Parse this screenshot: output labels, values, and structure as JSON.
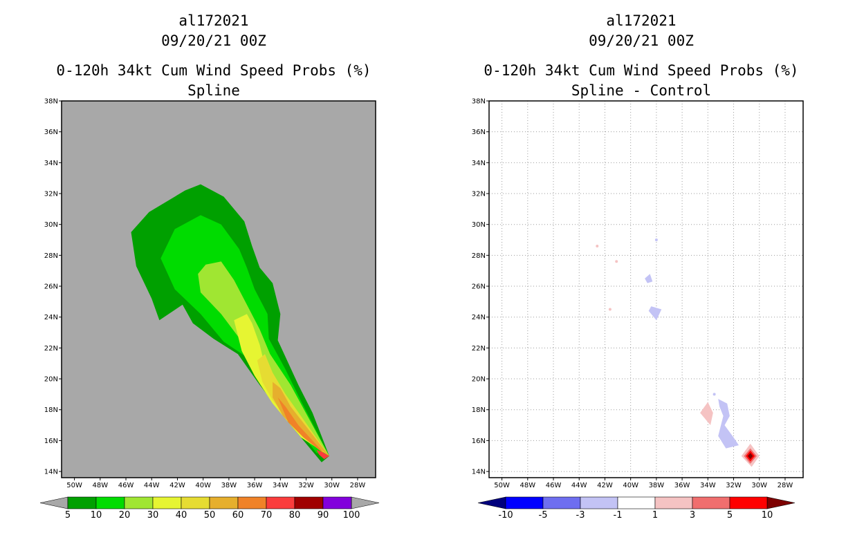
{
  "panels": [
    {
      "title_lines": [
        "al172021",
        "09/20/21 00Z",
        "0-120h 34kt Cum Wind Speed Probs (%)",
        "Spline"
      ]
    },
    {
      "title_lines": [
        "al172021",
        "09/20/21 00Z",
        "0-120h 34kt Cum Wind Speed Probs (%)",
        "Spline - Control"
      ]
    }
  ],
  "chart_data": [
    {
      "type": "heatmap",
      "title": "0-120h 34kt Cum Wind Speed Probs (%) Spline",
      "storm": "al172021",
      "time": "09/20/21 00Z",
      "x_ticks": [
        "50W",
        "48W",
        "46W",
        "44W",
        "42W",
        "40W",
        "38W",
        "36W",
        "34W",
        "32W",
        "30W",
        "28W"
      ],
      "y_ticks": [
        "14N",
        "16N",
        "18N",
        "20N",
        "22N",
        "24N",
        "26N",
        "28N",
        "30N",
        "32N",
        "34N",
        "36N",
        "38N"
      ],
      "xlim_deg_w": [
        51,
        26.6
      ],
      "ylim_deg_n": [
        13.6,
        38
      ],
      "grid": false,
      "background_color": "#a8a8a8",
      "colorbar": {
        "labels": [
          "5",
          "10",
          "20",
          "30",
          "40",
          "50",
          "60",
          "70",
          "80",
          "90",
          "100"
        ],
        "colors": [
          "#00a000",
          "#00dc00",
          "#a0e632",
          "#e6f532",
          "#e6dc32",
          "#e6af2d",
          "#f08228",
          "#fa3c3c",
          "#a00000",
          "#8200dc"
        ],
        "arrow_colors": [
          "#a8a8a8",
          "#a8a8a8"
        ]
      },
      "contours": [
        {
          "level": 5,
          "color": "#00a000",
          "polygon": [
            [
              -45.6,
              29.5
            ],
            [
              -44.2,
              30.8
            ],
            [
              -41.4,
              32.2
            ],
            [
              -40.2,
              32.6
            ],
            [
              -38.4,
              31.8
            ],
            [
              -36.8,
              30.2
            ],
            [
              -36.2,
              28.6
            ],
            [
              -35.6,
              27.2
            ],
            [
              -34.6,
              26.2
            ],
            [
              -34,
              24.2
            ],
            [
              -34.2,
              22.5
            ],
            [
              -32.6,
              19.6
            ],
            [
              -31.5,
              17.8
            ],
            [
              -30.2,
              15
            ],
            [
              -30.8,
              14.6
            ],
            [
              -33.4,
              17.2
            ],
            [
              -35.6,
              19.6
            ],
            [
              -37.3,
              21.6
            ],
            [
              -39.2,
              22.6
            ],
            [
              -40.8,
              23.6
            ],
            [
              -41.6,
              24.8
            ],
            [
              -43.4,
              23.8
            ],
            [
              -44,
              25.2
            ],
            [
              -45.2,
              27.3
            ]
          ]
        },
        {
          "level": 10,
          "color": "#00dc00",
          "polygon": [
            [
              -43.3,
              27.8
            ],
            [
              -42.2,
              29.7
            ],
            [
              -40.2,
              30.6
            ],
            [
              -38.6,
              30
            ],
            [
              -37.2,
              28.4
            ],
            [
              -36.6,
              27.2
            ],
            [
              -36,
              25.8
            ],
            [
              -35,
              24.2
            ],
            [
              -34.9,
              22.6
            ],
            [
              -33.6,
              20.6
            ],
            [
              -32.3,
              18.4
            ],
            [
              -30.2,
              15
            ],
            [
              -31.2,
              15.2
            ],
            [
              -33.4,
              17.6
            ],
            [
              -35.2,
              19.6
            ],
            [
              -36.6,
              21.4
            ],
            [
              -38.4,
              22.4
            ],
            [
              -40.2,
              24.2
            ],
            [
              -42.2,
              25.8
            ]
          ]
        },
        {
          "level": 20,
          "color": "#a0e632",
          "polygon": [
            [
              -40.4,
              26.8
            ],
            [
              -39.8,
              27.4
            ],
            [
              -38.6,
              27.6
            ],
            [
              -37.6,
              26.4
            ],
            [
              -36.6,
              24.8
            ],
            [
              -35.6,
              23.2
            ],
            [
              -34.8,
              21.6
            ],
            [
              -33.2,
              19.6
            ],
            [
              -30.2,
              15
            ],
            [
              -31.8,
              16
            ],
            [
              -33.8,
              17.8
            ],
            [
              -35.6,
              20
            ],
            [
              -36.8,
              22.2
            ],
            [
              -38.6,
              24.2
            ],
            [
              -40.2,
              25.6
            ]
          ]
        },
        {
          "level": 30,
          "color": "#e6f532",
          "polygon": [
            [
              -37.6,
              23.8
            ],
            [
              -36.6,
              24.2
            ],
            [
              -36.2,
              23.6
            ],
            [
              -35.6,
              22.2
            ],
            [
              -35.2,
              20.8
            ],
            [
              -34.2,
              19.4
            ],
            [
              -30.2,
              15
            ],
            [
              -32.4,
              16.2
            ],
            [
              -34.6,
              18.4
            ],
            [
              -36,
              20.2
            ],
            [
              -37,
              21.8
            ]
          ]
        },
        {
          "level": 40,
          "color": "#e6dc32",
          "polygon": [
            [
              -35.8,
              21.2
            ],
            [
              -35.2,
              21.6
            ],
            [
              -34.6,
              20.4
            ],
            [
              -33.6,
              19
            ],
            [
              -30.2,
              15
            ],
            [
              -32.6,
              16.6
            ],
            [
              -34.6,
              18.6
            ],
            [
              -35.4,
              19.8
            ]
          ]
        },
        {
          "level": 50,
          "color": "#e6af2d",
          "polygon": [
            [
              -34.6,
              19.8
            ],
            [
              -34,
              19.4
            ],
            [
              -33.2,
              18.2
            ],
            [
              -30.2,
              15
            ],
            [
              -32.4,
              16.4
            ],
            [
              -33.8,
              17.6
            ],
            [
              -34.6,
              18.8
            ]
          ]
        },
        {
          "level": 60,
          "color": "#f08228",
          "polygon": [
            [
              -34.2,
              18.8
            ],
            [
              -33.6,
              18.2
            ],
            [
              -32.6,
              17
            ],
            [
              -30.4,
              15
            ],
            [
              -32.2,
              16.2
            ],
            [
              -33.4,
              17.2
            ]
          ]
        },
        {
          "level": 70,
          "color": "#fa3c3c",
          "polygon": [
            [
              -31.2,
              15.4
            ],
            [
              -30.6,
              15.2
            ],
            [
              -30.2,
              15
            ],
            [
              -30.6,
              14.8
            ],
            [
              -31,
              15.1
            ]
          ]
        }
      ]
    },
    {
      "type": "heatmap",
      "title": "0-120h 34kt Cum Wind Speed Probs (%) Spline - Control",
      "storm": "al172021",
      "time": "09/20/21 00Z",
      "x_ticks": [
        "50W",
        "48W",
        "46W",
        "44W",
        "42W",
        "40W",
        "38W",
        "36W",
        "34W",
        "32W",
        "30W",
        "28W"
      ],
      "y_ticks": [
        "14N",
        "16N",
        "18N",
        "20N",
        "22N",
        "24N",
        "26N",
        "28N",
        "30N",
        "32N",
        "34N",
        "36N",
        "38N"
      ],
      "xlim_deg_w": [
        51,
        26.6
      ],
      "ylim_deg_n": [
        13.6,
        38
      ],
      "grid": true,
      "background_color": "#ffffff",
      "colorbar": {
        "labels": [
          "-10",
          "-5",
          "-3",
          "-1",
          "1",
          "3",
          "5",
          "10"
        ],
        "colors": [
          "#0000ff",
          "#6e6ef0",
          "#c3c3f5",
          "#ffffff",
          "#f5c3c3",
          "#f06e6e",
          "#ff0000"
        ],
        "arrow_colors": [
          "#00007d",
          "#7d0000"
        ]
      },
      "contours": [
        {
          "level": -1,
          "color": "#c3c3f5",
          "polygon": [
            [
              -38,
              29
            ]
          ]
        },
        {
          "level": -1,
          "color": "#c3c3f5",
          "polygon": [
            [
              -38.5,
              26.8
            ],
            [
              -38.3,
              26.3
            ],
            [
              -38.7,
              26.2
            ],
            [
              -38.9,
              26.5
            ]
          ]
        },
        {
          "level": -1,
          "color": "#c3c3f5",
          "polygon": [
            [
              -38.4,
              24.7
            ],
            [
              -37.6,
              24.5
            ],
            [
              -38,
              23.8
            ],
            [
              -38.6,
              24.4
            ]
          ]
        },
        {
          "level": -1,
          "color": "#c3c3f5",
          "polygon": [
            [
              -33.2,
              18.7
            ],
            [
              -32.5,
              18.4
            ],
            [
              -32.3,
              17.6
            ],
            [
              -32.7,
              17
            ],
            [
              -32,
              16.2
            ],
            [
              -31.6,
              15.7
            ],
            [
              -32.6,
              15.5
            ],
            [
              -33.2,
              16.3
            ],
            [
              -32.8,
              17.6
            ],
            [
              -33.1,
              18.2
            ]
          ]
        },
        {
          "level": -1,
          "color": "#c3c3f5",
          "polygon": [
            [
              -33.5,
              19
            ]
          ]
        },
        {
          "level": 1,
          "color": "#f5c3c3",
          "polygon": [
            [
              -42.6,
              28.6
            ]
          ]
        },
        {
          "level": 1,
          "color": "#f5c3c3",
          "polygon": [
            [
              -41.1,
              27.6
            ]
          ]
        },
        {
          "level": 1,
          "color": "#f5c3c3",
          "polygon": [
            [
              -41.6,
              24.5
            ]
          ]
        },
        {
          "level": 1,
          "color": "#f5c3c3",
          "polygon": [
            [
              -34,
              18.5
            ],
            [
              -33.6,
              17.8
            ],
            [
              -33.8,
              17
            ],
            [
              -34.6,
              17.8
            ]
          ]
        },
        {
          "level": 1,
          "color": "#f5c3c3",
          "polygon": [
            [
              -30.7,
              15.8
            ],
            [
              -30,
              15
            ],
            [
              -30.6,
              14.3
            ],
            [
              -31.4,
              15
            ]
          ]
        },
        {
          "level": 3,
          "color": "#f06e6e",
          "polygon": [
            [
              -30.7,
              15.5
            ],
            [
              -30.2,
              15
            ],
            [
              -30.7,
              14.5
            ],
            [
              -31.2,
              15
            ]
          ]
        },
        {
          "level": 5,
          "color": "#ff0000",
          "polygon": [
            [
              -30.7,
              15.35
            ],
            [
              -30.35,
              15
            ],
            [
              -30.7,
              14.65
            ],
            [
              -31.05,
              15
            ]
          ]
        },
        {
          "level": 10,
          "color": "#7d0000",
          "polygon": [
            [
              -30.7,
              15.2
            ],
            [
              -30.5,
              15
            ],
            [
              -30.7,
              14.8
            ],
            [
              -30.9,
              15
            ]
          ]
        }
      ]
    }
  ]
}
